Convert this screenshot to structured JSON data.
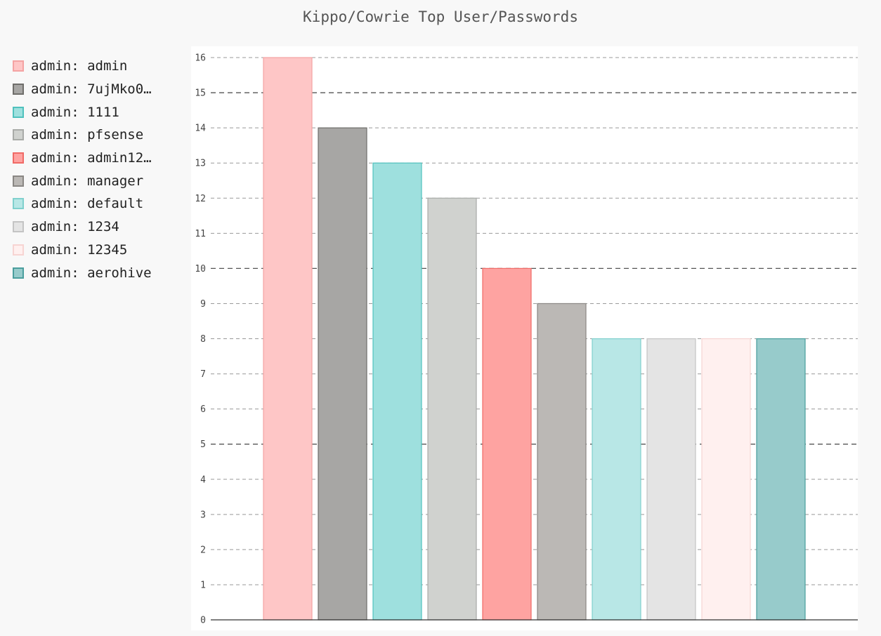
{
  "chart_data": {
    "type": "bar",
    "title": "Kippo/Cowrie Top User/Passwords",
    "xlabel": "",
    "ylabel": "",
    "ylim": [
      0,
      16
    ],
    "yticks": [
      0,
      1,
      2,
      3,
      4,
      5,
      6,
      7,
      8,
      9,
      10,
      11,
      12,
      13,
      14,
      15,
      16
    ],
    "major_yticks": [
      5,
      10,
      15
    ],
    "grid": true,
    "legend_position": "left",
    "series": [
      {
        "name": "admin: admin",
        "legend_label": "admin: admin",
        "value": 16,
        "fill": "#fec6c6",
        "stroke": "#f4a3a3"
      },
      {
        "name": "admin: 7ujMko0",
        "legend_label": "admin: 7ujMko0…",
        "value": 14,
        "fill": "#a7a6a4",
        "stroke": "#6f6e6b"
      },
      {
        "name": "admin: 1111",
        "legend_label": "admin: 1111",
        "value": 13,
        "fill": "#9ee0de",
        "stroke": "#4fc1bd"
      },
      {
        "name": "admin: pfsense",
        "legend_label": "admin: pfsense",
        "value": 12,
        "fill": "#d0d2cf",
        "stroke": "#a9aba8"
      },
      {
        "name": "admin: admin12",
        "legend_label": "admin12…",
        "legend_prefix": "admin: ",
        "value": 10,
        "fill": "#fea3a1",
        "stroke": "#f06a66"
      },
      {
        "name": "admin: manager",
        "legend_label": "admin: manager",
        "value": 9,
        "fill": "#bbb8b5",
        "stroke": "#8a8784"
      },
      {
        "name": "admin: default",
        "legend_label": "admin: default",
        "value": 8,
        "fill": "#b8e7e6",
        "stroke": "#80d0cd"
      },
      {
        "name": "admin: 1234",
        "legend_label": "admin: 1234",
        "value": 8,
        "fill": "#e4e4e4",
        "stroke": "#c4c4c4"
      },
      {
        "name": "admin: 12345",
        "legend_label": "admin: 12345",
        "value": 8,
        "fill": "#fff0ef",
        "stroke": "#f7d4d2"
      },
      {
        "name": "admin: aerohive",
        "legend_label": "admin: aerohive",
        "value": 8,
        "fill": "#97cbcb",
        "stroke": "#4a9e9d"
      }
    ]
  }
}
